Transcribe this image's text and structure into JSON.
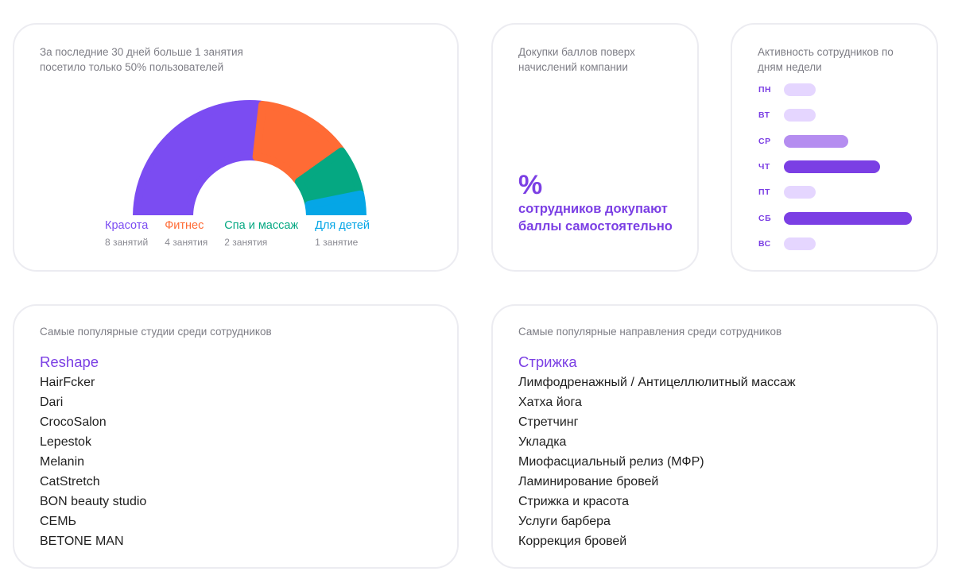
{
  "colors": {
    "accent": "#7b3fe4",
    "beauty": "#7b4cf2",
    "fitness": "#ff6b35",
    "spa": "#05a882",
    "kids": "#05a6e6",
    "bar_light": "#e5d6ff",
    "bar_mid": "#b58df0",
    "bar_strong": "#7b3fe4"
  },
  "sessions_card": {
    "title": "За последние 30 дней больше 1 занятия посетило только 50% пользователей",
    "legend": [
      {
        "name": "Красота",
        "count": "8 занятий",
        "color_key": "beauty"
      },
      {
        "name": "Фитнес",
        "count": "4 занятия",
        "color_key": "fitness"
      },
      {
        "name": "Спа и массаж",
        "count": "2 занятия",
        "color_key": "spa"
      },
      {
        "name": "Для детей",
        "count": "1 занятие",
        "color_key": "kids"
      }
    ]
  },
  "chart_data": {
    "type": "pie",
    "categories": [
      "Красота",
      "Фитнес",
      "Спа и массаж",
      "Для детей"
    ],
    "values": [
      8,
      4,
      2,
      1
    ],
    "shape": "semicircle-donut"
  },
  "topup_card": {
    "title": "Докупки баллов поверх начислений компании",
    "value": "%",
    "caption": "сотрудников докупают баллы самостоятельно"
  },
  "activity_card": {
    "title": "Активность сотрудников по дням недели",
    "days": [
      {
        "label": "ПН",
        "level": 0.25,
        "tone": "bar_light"
      },
      {
        "label": "ВТ",
        "level": 0.25,
        "tone": "bar_light"
      },
      {
        "label": "СР",
        "level": 0.5,
        "tone": "bar_mid"
      },
      {
        "label": "ЧТ",
        "level": 0.75,
        "tone": "bar_strong"
      },
      {
        "label": "ПТ",
        "level": 0.25,
        "tone": "bar_light"
      },
      {
        "label": "СБ",
        "level": 1.0,
        "tone": "bar_strong"
      },
      {
        "label": "ВС",
        "level": 0.25,
        "tone": "bar_light"
      }
    ]
  },
  "studios_card": {
    "title": "Самые популярные студии среди сотрудников",
    "items": [
      "Reshape",
      "HairFcker",
      "Dari",
      "CrocoSalon",
      "Lepestok",
      "Melanin",
      "CatStretch",
      "BON beauty studio",
      "СЕМЬ",
      "BETONE MAN"
    ]
  },
  "directions_card": {
    "title": "Самые популярные направления среди сотрудников",
    "items": [
      "Стрижка",
      "Лимфодренажный / Антицеллюлитный массаж",
      "Хатха йога",
      "Стретчинг",
      "Укладка",
      "Миофасциальный релиз (МФР)",
      "Ламинирование бровей",
      "Стрижка и красота",
      "Услуги барбера",
      "Коррекция бровей"
    ]
  }
}
